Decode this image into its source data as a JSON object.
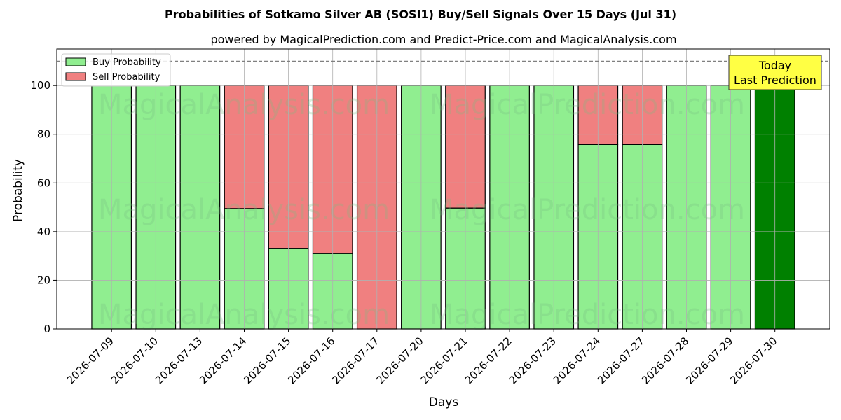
{
  "chart_data": {
    "type": "bar",
    "stacked": true,
    "title": "Probabilities of Sotkamo Silver AB (SOSI1) Buy/Sell Signals Over 15 Days (Jul 31)",
    "subtitle": "powered by MagicalPrediction.com and Predict-Price.com and MagicalAnalysis.com",
    "xlabel": "Days",
    "ylabel": "Probability",
    "ylim": [
      0,
      115
    ],
    "yticks": [
      0,
      20,
      40,
      60,
      80,
      100
    ],
    "reference_line": 110,
    "grid": true,
    "legend_position": "top-left",
    "categories": [
      "2026-07-09",
      "2026-07-10",
      "2026-07-13",
      "2026-07-14",
      "2026-07-15",
      "2026-07-16",
      "2026-07-17",
      "2026-07-20",
      "2026-07-21",
      "2026-07-22",
      "2026-07-23",
      "2026-07-24",
      "2026-07-27",
      "2026-07-28",
      "2026-07-29",
      "2026-07-30"
    ],
    "series": [
      {
        "name": "Buy Probability",
        "color": "#90ee90",
        "values": [
          100,
          100,
          100,
          49.5,
          33,
          31,
          0,
          100,
          49.7,
          100,
          100,
          75.8,
          75.8,
          100,
          100,
          100
        ]
      },
      {
        "name": "Sell Probability",
        "color": "#f08080",
        "values": [
          0,
          0,
          0,
          50.5,
          67,
          69,
          100,
          0,
          50.3,
          0,
          0,
          24.2,
          24.2,
          0,
          0,
          0
        ]
      }
    ],
    "highlight": {
      "index": 15,
      "color": "#008000",
      "labels": [
        "Today",
        "Last Prediction"
      ],
      "box_color": "#ffff44"
    },
    "watermarks": [
      "MagicalAnalysis.com",
      "MagicalPrediction.com"
    ]
  }
}
